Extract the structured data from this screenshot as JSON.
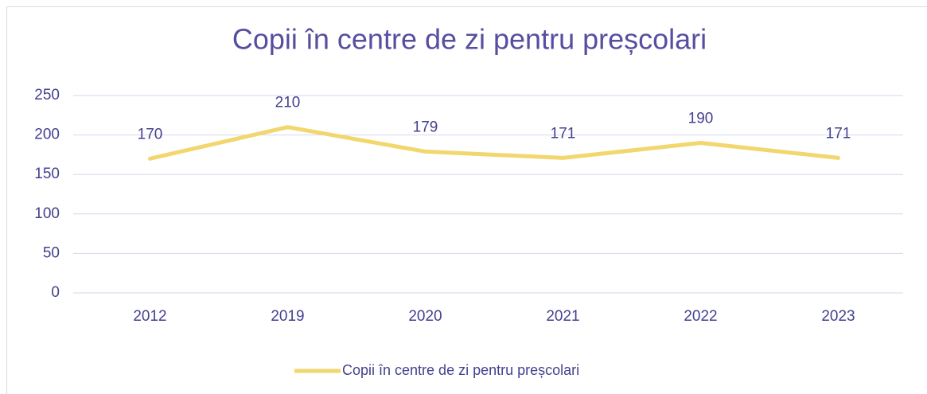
{
  "chart_data": {
    "type": "line",
    "title": "Copii în centre de zi pentru preșcolari",
    "categories": [
      "2012",
      "2019",
      "2020",
      "2021",
      "2022",
      "2023"
    ],
    "series": [
      {
        "name": "Copii în centre de zi pentru preșcolari",
        "color": "#f2d66e",
        "values": [
          170,
          210,
          179,
          171,
          190,
          171
        ]
      }
    ],
    "ylim": [
      0,
      250
    ],
    "yticks": [
      0,
      50,
      100,
      150,
      200,
      250
    ],
    "grid": true,
    "legend": "bottom"
  }
}
